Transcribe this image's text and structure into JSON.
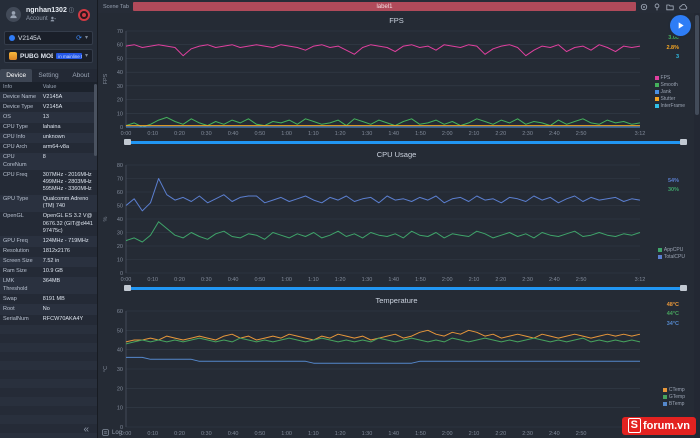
{
  "sidebar": {
    "user": {
      "name": "ngnhan1302",
      "account_label": "Account"
    },
    "device_select": {
      "value": "V2145A"
    },
    "app_select": {
      "value": "PUBG MOBILE",
      "badge": "in mainline test"
    },
    "tabs": [
      {
        "label": "Device",
        "active": true
      },
      {
        "label": "Setting",
        "active": false
      },
      {
        "label": "About",
        "active": false
      }
    ],
    "info_table": {
      "headers": [
        "Info",
        "Value"
      ],
      "rows": [
        [
          "Device Name",
          "V2145A"
        ],
        [
          "Device Type",
          "V2145A"
        ],
        [
          "OS",
          "13"
        ],
        [
          "CPU Type",
          "lahaina"
        ],
        [
          "CPU Info",
          "unknown"
        ],
        [
          "CPU Arch",
          "arm64-v8a"
        ],
        [
          "CPU CoreNum",
          "8"
        ],
        [
          "CPU Freq",
          "307MHz - 2016MHz\n499MHz - 2803MHz\n595MHz - 3360MHz"
        ],
        [
          "GPU Type",
          "Qualcomm Adreno (TM) 740"
        ],
        [
          "OpenGL",
          "OpenGL ES 3.2 V@0676.32 (GIT@d44197475c)"
        ],
        [
          "GPU Freq",
          "124MHz - 719MHz"
        ],
        [
          "Resolution",
          "1812x2176"
        ],
        [
          "Screen Size",
          "7.52 in"
        ],
        [
          "Ram Size",
          "10.9 GB"
        ],
        [
          "LMK Threshold",
          "364MB"
        ],
        [
          "Swap",
          "8191 MB"
        ],
        [
          "Root",
          "No"
        ],
        [
          "SerialNum",
          "RFCW70AKA4Y"
        ]
      ]
    },
    "collapse_label": "«"
  },
  "topbar": {
    "scene_tab_label": "Scene Tab",
    "label": "label1",
    "icons": [
      "target-icon",
      "pin-icon",
      "folder-icon",
      "cloud-icon"
    ]
  },
  "bottombar": {
    "log_label": "Log"
  },
  "watermark": {
    "logo_letter": "S",
    "domain": "forum.vn"
  },
  "colors": {
    "accent_blue": "#2f7bf5",
    "scene_bar_red": "#b04a5a",
    "record_red": "#cf3a44",
    "slider_blue": "#2196f3",
    "watermark_red": "#e32220"
  },
  "chart_data": [
    {
      "id": "fps",
      "type": "line",
      "title": "FPS",
      "ylabel": "FPS",
      "ylim": [
        0,
        70
      ],
      "yticks": [
        0,
        10,
        20,
        30,
        40,
        50,
        60,
        70
      ],
      "xticks": [
        "0:00",
        "0:10",
        "0:20",
        "0:30",
        "0:40",
        "0:50",
        "1:00",
        "1:10",
        "1:20",
        "1:30",
        "1:40",
        "1:50",
        "2:00",
        "2:10",
        "2:20",
        "2:30",
        "2:40",
        "2:50",
        "3:12"
      ],
      "grid": true,
      "legend_position": "right",
      "legend": [
        {
          "label": "FPS",
          "color": "#e0409f"
        },
        {
          "label": "Smooth",
          "color": "#45b15c"
        },
        {
          "label": "Jank",
          "color": "#4a90e2"
        },
        {
          "label": "Stutter",
          "color": "#f5a623"
        },
        {
          "label": "InterFrame",
          "color": "#30c0e8"
        }
      ],
      "readouts": [
        {
          "value": "58",
          "color": "#e0409f"
        },
        {
          "value": "3.00",
          "color": "#45b15c"
        },
        {
          "value": "2.8%",
          "color": "#f5a623"
        },
        {
          "value": "3",
          "color": "#30c0e8"
        }
      ],
      "series": [
        {
          "name": "FPS",
          "color": "#e0409f",
          "values": [
            59,
            60,
            58,
            59,
            60,
            59,
            58,
            52,
            57,
            59,
            60,
            58,
            59,
            60,
            58,
            59,
            60,
            59,
            58,
            60,
            59,
            58,
            56,
            59,
            60,
            58,
            59,
            56,
            53,
            58,
            60,
            59,
            58,
            55,
            59,
            60,
            58,
            59,
            56,
            60,
            59,
            58,
            60,
            59,
            53,
            57,
            59,
            60,
            58,
            52,
            56,
            59,
            58,
            60,
            55,
            58,
            59,
            56,
            60,
            58,
            55,
            59,
            58,
            59
          ]
        },
        {
          "name": "Smooth",
          "color": "#45b15c",
          "values": [
            1,
            3,
            0,
            2,
            5,
            7,
            4,
            2,
            6,
            3,
            1,
            4,
            2,
            5,
            3,
            6,
            2,
            1,
            4,
            3,
            5,
            2,
            6,
            4,
            2,
            3,
            5,
            1,
            6,
            4,
            2,
            5,
            3,
            1,
            4,
            6,
            2,
            3,
            5,
            2,
            4,
            1,
            3,
            6,
            4,
            2,
            5,
            3,
            6,
            2,
            4,
            3,
            1,
            5,
            2,
            4,
            6,
            3,
            2,
            5,
            3,
            4,
            2,
            3
          ]
        },
        {
          "name": "Stutter",
          "color": "#f5a623",
          "values": [
            1,
            1,
            1,
            1,
            1,
            1,
            1,
            1,
            1,
            1,
            1,
            1,
            1,
            1,
            1,
            1,
            1,
            1,
            1,
            1,
            1,
            1,
            1,
            1,
            1,
            1,
            1,
            1,
            1,
            1,
            1,
            1,
            1,
            1,
            1,
            1,
            1,
            1,
            1,
            1,
            1,
            1,
            1,
            1,
            1,
            1,
            1,
            1,
            1,
            1,
            1,
            1,
            1,
            1,
            1,
            1,
            1,
            1,
            1,
            1,
            1,
            1,
            1,
            1
          ]
        },
        {
          "name": "Jank",
          "color": "#4a90e2",
          "values": [
            0,
            0,
            0,
            0,
            0,
            0,
            0,
            0,
            0,
            0,
            0,
            0,
            0,
            0,
            0,
            0,
            0,
            0,
            0,
            0,
            0,
            0,
            0,
            0,
            0,
            0,
            0,
            0,
            0,
            0,
            0,
            0,
            0,
            0,
            0,
            0,
            0,
            0,
            0,
            0,
            0,
            0,
            0,
            0,
            0,
            0,
            0,
            0,
            0,
            0,
            0,
            0,
            0,
            0,
            0,
            0,
            0,
            0,
            0,
            0,
            0,
            0,
            0,
            0
          ]
        },
        {
          "name": "InterFrame",
          "color": "#30c0e8",
          "values": []
        }
      ]
    },
    {
      "id": "cpu-usage",
      "type": "line",
      "title": "CPU Usage",
      "ylabel": "%",
      "ylim": [
        0,
        80
      ],
      "yticks": [
        0,
        10,
        20,
        30,
        40,
        50,
        60,
        70,
        80
      ],
      "xticks": [
        "0:00",
        "0:10",
        "0:20",
        "0:30",
        "0:40",
        "0:50",
        "1:00",
        "1:10",
        "1:20",
        "1:30",
        "1:40",
        "1:50",
        "2:00",
        "2:10",
        "2:20",
        "2:30",
        "2:40",
        "2:50",
        "3:12"
      ],
      "grid": true,
      "legend_position": "right",
      "legend": [
        {
          "label": "AppCPU",
          "color": "#3fa46a"
        },
        {
          "label": "TotalCPU",
          "color": "#5b7fd0"
        }
      ],
      "readouts": [
        {
          "value": "54%",
          "color": "#5b7fd0"
        },
        {
          "value": "30%",
          "color": "#3fa46a"
        }
      ],
      "series": [
        {
          "name": "TotalCPU",
          "color": "#5b7fd0",
          "values": [
            50,
            55,
            46,
            52,
            70,
            58,
            54,
            56,
            53,
            57,
            52,
            55,
            58,
            53,
            56,
            57,
            57,
            52,
            54,
            56,
            53,
            55,
            57,
            54,
            52,
            56,
            54,
            57,
            53,
            55,
            56,
            52,
            57,
            54,
            55,
            53,
            56,
            54,
            57,
            52,
            55,
            56,
            53,
            57,
            54,
            55,
            52,
            56,
            55,
            53,
            57,
            54,
            56,
            52,
            55,
            57,
            53,
            56,
            54,
            55,
            56,
            53,
            55,
            54
          ]
        },
        {
          "name": "AppCPU",
          "color": "#3fa46a",
          "values": [
            24,
            26,
            23,
            28,
            38,
            33,
            28,
            26,
            30,
            27,
            25,
            29,
            31,
            27,
            26,
            29,
            28,
            25,
            30,
            28,
            26,
            29,
            27,
            30,
            26,
            28,
            31,
            27,
            29,
            26,
            30,
            28,
            27,
            29,
            26,
            31,
            28,
            27,
            30,
            26,
            29,
            28,
            27,
            31,
            29,
            26,
            28,
            30,
            27,
            29,
            26,
            30,
            28,
            27,
            29,
            31,
            27,
            28,
            30,
            28,
            27,
            29,
            28,
            30
          ]
        }
      ]
    },
    {
      "id": "temperature",
      "type": "line",
      "title": "Temperature",
      "ylabel": "°C",
      "ylim": [
        0,
        60
      ],
      "yticks": [
        0,
        10,
        20,
        30,
        40,
        50,
        60
      ],
      "xticks": [
        "0:00",
        "0:10",
        "0:20",
        "0:30",
        "0:40",
        "0:50",
        "1:00",
        "1:10",
        "1:20",
        "1:30",
        "1:40",
        "1:50",
        "2:00",
        "2:10",
        "2:20",
        "2:30",
        "2:40",
        "2:50",
        "3:12"
      ],
      "grid": true,
      "legend_position": "right",
      "legend": [
        {
          "label": "CTemp",
          "color": "#e8973a"
        },
        {
          "label": "GTemp",
          "color": "#47a35e"
        },
        {
          "label": "BTemp",
          "color": "#5588cc"
        }
      ],
      "readouts": [
        {
          "value": "48°C",
          "color": "#e8973a"
        },
        {
          "value": "44°C",
          "color": "#47a35e"
        },
        {
          "value": "34°C",
          "color": "#5588cc"
        }
      ],
      "series": [
        {
          "name": "CTemp",
          "color": "#e8973a",
          "values": [
            44,
            45,
            45,
            46,
            45,
            47,
            46,
            45,
            46,
            47,
            46,
            45,
            47,
            48,
            46,
            47,
            45,
            46,
            47,
            46,
            48,
            47,
            46,
            45,
            47,
            46,
            48,
            47,
            46,
            47,
            45,
            46,
            47,
            48,
            46,
            47,
            49,
            50,
            48,
            47,
            49,
            48,
            50,
            49,
            47,
            48,
            46,
            47,
            48,
            47,
            46,
            48,
            47,
            46,
            47,
            48,
            47,
            46,
            47,
            48,
            47,
            48,
            47,
            48
          ]
        },
        {
          "name": "GTemp",
          "color": "#47a35e",
          "values": [
            43,
            44,
            45,
            44,
            45,
            44,
            45,
            44,
            45,
            46,
            45,
            44,
            45,
            44,
            46,
            45,
            44,
            45,
            44,
            45,
            46,
            45,
            44,
            45,
            46,
            45,
            44,
            45,
            44,
            45,
            44,
            46,
            45,
            44,
            45,
            46,
            45,
            44,
            45,
            44,
            46,
            45,
            44,
            45,
            46,
            45,
            44,
            45,
            44,
            45,
            46,
            45,
            44,
            45,
            44,
            45,
            46,
            44,
            45,
            44,
            45,
            44,
            45,
            44
          ]
        },
        {
          "name": "BTemp",
          "color": "#5588cc",
          "values": [
            36,
            36,
            36,
            35,
            35,
            35,
            35,
            35,
            35,
            34,
            34,
            34,
            34,
            34,
            34,
            34,
            34,
            34,
            34,
            34,
            34,
            34,
            34,
            33,
            33,
            33,
            33,
            33,
            33,
            33,
            33,
            33,
            33,
            33,
            33,
            33,
            34,
            34,
            34,
            34,
            34,
            34,
            34,
            34,
            34,
            34,
            34,
            34,
            34,
            34,
            34,
            34,
            34,
            34,
            34,
            34,
            34,
            34,
            34,
            34,
            34,
            34,
            34,
            34
          ]
        }
      ]
    }
  ]
}
